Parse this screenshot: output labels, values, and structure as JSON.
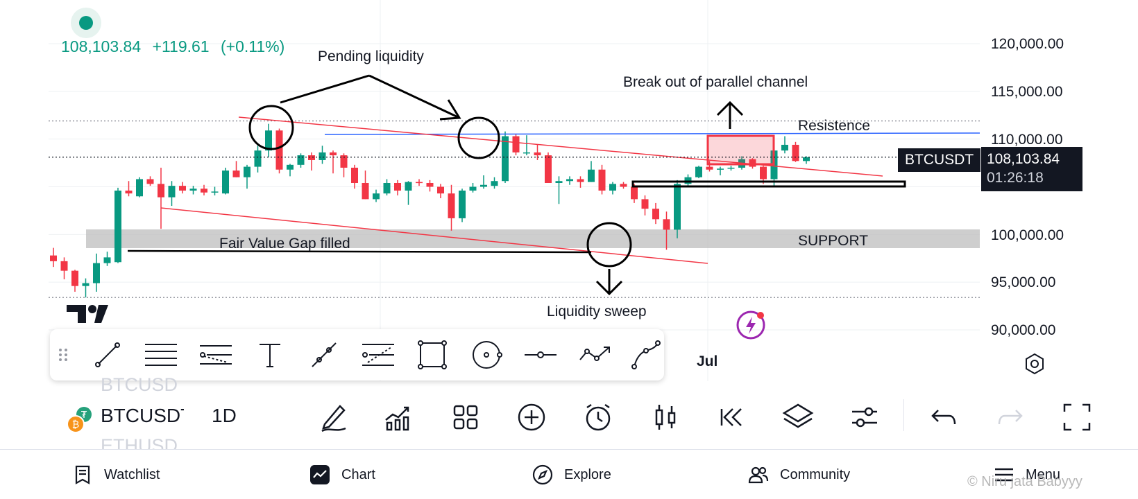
{
  "header": {
    "price": "108,103.84",
    "change": "+119.61",
    "change_pct": "(+0.11%)",
    "color_up": "#089981",
    "color_down": "#f23645"
  },
  "chart_data": {
    "type": "candlestick",
    "symbol": "BTCUSDT",
    "interval": "1D",
    "ylim": [
      88000,
      123000
    ],
    "y_ticks": [
      "120,000.00",
      "115,000.00",
      "110,000.00",
      "100,000.00",
      "95,000.00",
      "90,000.00"
    ],
    "x_labels": [
      "Jul"
    ],
    "candles": [
      {
        "o": 97800,
        "h": 98600,
        "l": 96600,
        "c": 97200
      },
      {
        "o": 97200,
        "h": 97600,
        "l": 95300,
        "c": 96200
      },
      {
        "o": 96200,
        "h": 96300,
        "l": 94000,
        "c": 94600
      },
      {
        "o": 94600,
        "h": 95400,
        "l": 93400,
        "c": 94900
      },
      {
        "o": 94900,
        "h": 98000,
        "l": 94000,
        "c": 97000
      },
      {
        "o": 97000,
        "h": 98200,
        "l": 96700,
        "c": 97600
      },
      {
        "o": 97100,
        "h": 104900,
        "l": 97000,
        "c": 104600
      },
      {
        "o": 104600,
        "h": 105600,
        "l": 104000,
        "c": 104300
      },
      {
        "o": 104000,
        "h": 106000,
        "l": 103900,
        "c": 105800
      },
      {
        "o": 105800,
        "h": 106100,
        "l": 105100,
        "c": 105300
      },
      {
        "o": 105300,
        "h": 107000,
        "l": 100600,
        "c": 103900
      },
      {
        "o": 103900,
        "h": 105600,
        "l": 103000,
        "c": 105100
      },
      {
        "o": 105100,
        "h": 105500,
        "l": 104300,
        "c": 104600
      },
      {
        "o": 104600,
        "h": 105100,
        "l": 104200,
        "c": 104800
      },
      {
        "o": 104800,
        "h": 105200,
        "l": 104100,
        "c": 104400
      },
      {
        "o": 104400,
        "h": 105000,
        "l": 104100,
        "c": 104500
      },
      {
        "o": 104300,
        "h": 107000,
        "l": 104200,
        "c": 106700
      },
      {
        "o": 106700,
        "h": 107700,
        "l": 106000,
        "c": 106000
      },
      {
        "o": 106000,
        "h": 107300,
        "l": 104800,
        "c": 107100
      },
      {
        "o": 107100,
        "h": 109300,
        "l": 106500,
        "c": 108800
      },
      {
        "o": 108800,
        "h": 111600,
        "l": 108100,
        "c": 110900
      },
      {
        "o": 110900,
        "h": 111100,
        "l": 106400,
        "c": 106800
      },
      {
        "o": 106800,
        "h": 107400,
        "l": 106100,
        "c": 107300
      },
      {
        "o": 107300,
        "h": 108500,
        "l": 107000,
        "c": 108300
      },
      {
        "o": 108300,
        "h": 108600,
        "l": 106700,
        "c": 107800
      },
      {
        "o": 107800,
        "h": 109300,
        "l": 107400,
        "c": 108600
      },
      {
        "o": 108600,
        "h": 108800,
        "l": 106400,
        "c": 108300
      },
      {
        "o": 108300,
        "h": 108500,
        "l": 106000,
        "c": 107000
      },
      {
        "o": 107000,
        "h": 107300,
        "l": 104800,
        "c": 105400
      },
      {
        "o": 105400,
        "h": 106700,
        "l": 103700,
        "c": 103700
      },
      {
        "o": 103700,
        "h": 104700,
        "l": 103400,
        "c": 104300
      },
      {
        "o": 104300,
        "h": 105800,
        "l": 104100,
        "c": 105400
      },
      {
        "o": 105400,
        "h": 105700,
        "l": 104100,
        "c": 104600
      },
      {
        "o": 104600,
        "h": 105600,
        "l": 103100,
        "c": 105500
      },
      {
        "o": 105500,
        "h": 105800,
        "l": 105100,
        "c": 105400
      },
      {
        "o": 105400,
        "h": 105700,
        "l": 104500,
        "c": 105000
      },
      {
        "o": 105000,
        "h": 105300,
        "l": 103800,
        "c": 104300
      },
      {
        "o": 104300,
        "h": 105200,
        "l": 100400,
        "c": 101700
      },
      {
        "o": 101700,
        "h": 104800,
        "l": 101300,
        "c": 104600
      },
      {
        "o": 104600,
        "h": 105400,
        "l": 104400,
        "c": 105000
      },
      {
        "o": 105000,
        "h": 106200,
        "l": 104800,
        "c": 105200
      },
      {
        "o": 105100,
        "h": 106000,
        "l": 104800,
        "c": 105600
      },
      {
        "o": 105600,
        "h": 110800,
        "l": 105400,
        "c": 110300
      },
      {
        "o": 110300,
        "h": 110500,
        "l": 108300,
        "c": 108600
      },
      {
        "o": 108600,
        "h": 110400,
        "l": 108300,
        "c": 108600
      },
      {
        "o": 108600,
        "h": 109400,
        "l": 107800,
        "c": 108300
      },
      {
        "o": 108300,
        "h": 108600,
        "l": 105400,
        "c": 105400
      },
      {
        "o": 105400,
        "h": 106100,
        "l": 103200,
        "c": 105600
      },
      {
        "o": 105600,
        "h": 106100,
        "l": 105200,
        "c": 105800
      },
      {
        "o": 105800,
        "h": 106100,
        "l": 104900,
        "c": 105500
      },
      {
        "o": 105500,
        "h": 107700,
        "l": 105500,
        "c": 106800
      },
      {
        "o": 106800,
        "h": 107300,
        "l": 104200,
        "c": 104600
      },
      {
        "o": 104600,
        "h": 105500,
        "l": 104200,
        "c": 105300
      },
      {
        "o": 105300,
        "h": 105500,
        "l": 104800,
        "c": 105000
      },
      {
        "o": 105000,
        "h": 105300,
        "l": 103300,
        "c": 103700
      },
      {
        "o": 103700,
        "h": 104100,
        "l": 102000,
        "c": 102700
      },
      {
        "o": 102700,
        "h": 103300,
        "l": 101100,
        "c": 101600
      },
      {
        "o": 101600,
        "h": 102400,
        "l": 98400,
        "c": 100500
      },
      {
        "o": 100500,
        "h": 105700,
        "l": 99600,
        "c": 105300
      },
      {
        "o": 105300,
        "h": 106300,
        "l": 105100,
        "c": 106000
      },
      {
        "o": 106000,
        "h": 107200,
        "l": 105900,
        "c": 107100
      },
      {
        "o": 107100,
        "h": 107700,
        "l": 106600,
        "c": 106800
      },
      {
        "o": 106800,
        "h": 107100,
        "l": 106200,
        "c": 106900
      },
      {
        "o": 106900,
        "h": 107200,
        "l": 106700,
        "c": 107000
      },
      {
        "o": 107000,
        "h": 108200,
        "l": 106800,
        "c": 107900
      },
      {
        "o": 107900,
        "h": 108000,
        "l": 106900,
        "c": 107100
      },
      {
        "o": 107100,
        "h": 107200,
        "l": 105300,
        "c": 105800
      },
      {
        "o": 105800,
        "h": 109300,
        "l": 105100,
        "c": 108800
      },
      {
        "o": 108800,
        "h": 110300,
        "l": 108500,
        "c": 109400
      },
      {
        "o": 109400,
        "h": 109700,
        "l": 107600,
        "c": 107700
      },
      {
        "o": 107700,
        "h": 108200,
        "l": 107400,
        "c": 108100
      }
    ],
    "price_line": 108103.84,
    "dotted_levels": [
      111900,
      93400
    ],
    "annotations": {
      "pending_liquidity": "Pending liquidity",
      "breakout": "Break out of parallel channel",
      "resistance": "Resistence",
      "fvg": "Fair Value Gap filled",
      "support": "SUPPORT",
      "sweep": "Liquidity sweep"
    },
    "support_zone": [
      98700,
      100500
    ],
    "resistance_level": 110800
  },
  "price_tag": {
    "symbol": "BTCUSDT",
    "price": "108,103.84",
    "countdown": "01:26:18"
  },
  "x_axis": {
    "month": "Jul"
  },
  "symbols": {
    "prev": "BTCUSD",
    "current": "BTCUSDT",
    "next": "ETHUSD",
    "interval": "1D"
  },
  "drawing_tools": [
    "drag-handle",
    "trend-line",
    "horizontal-lines",
    "pitchfork",
    "text",
    "ray",
    "fib-retracement",
    "rectangle",
    "circle",
    "horizontal-ray",
    "path",
    "curve"
  ],
  "toolbar_icons": [
    "pencil",
    "indicators",
    "layouts",
    "add",
    "alert",
    "candles",
    "replay",
    "layers",
    "settings",
    "undo",
    "redo",
    "fullscreen"
  ],
  "nav": {
    "watchlist": "Watchlist",
    "chart": "Chart",
    "explore": "Explore",
    "community": "Community",
    "menu": "Menu"
  },
  "watermark": "© Niru jata Babyyy"
}
